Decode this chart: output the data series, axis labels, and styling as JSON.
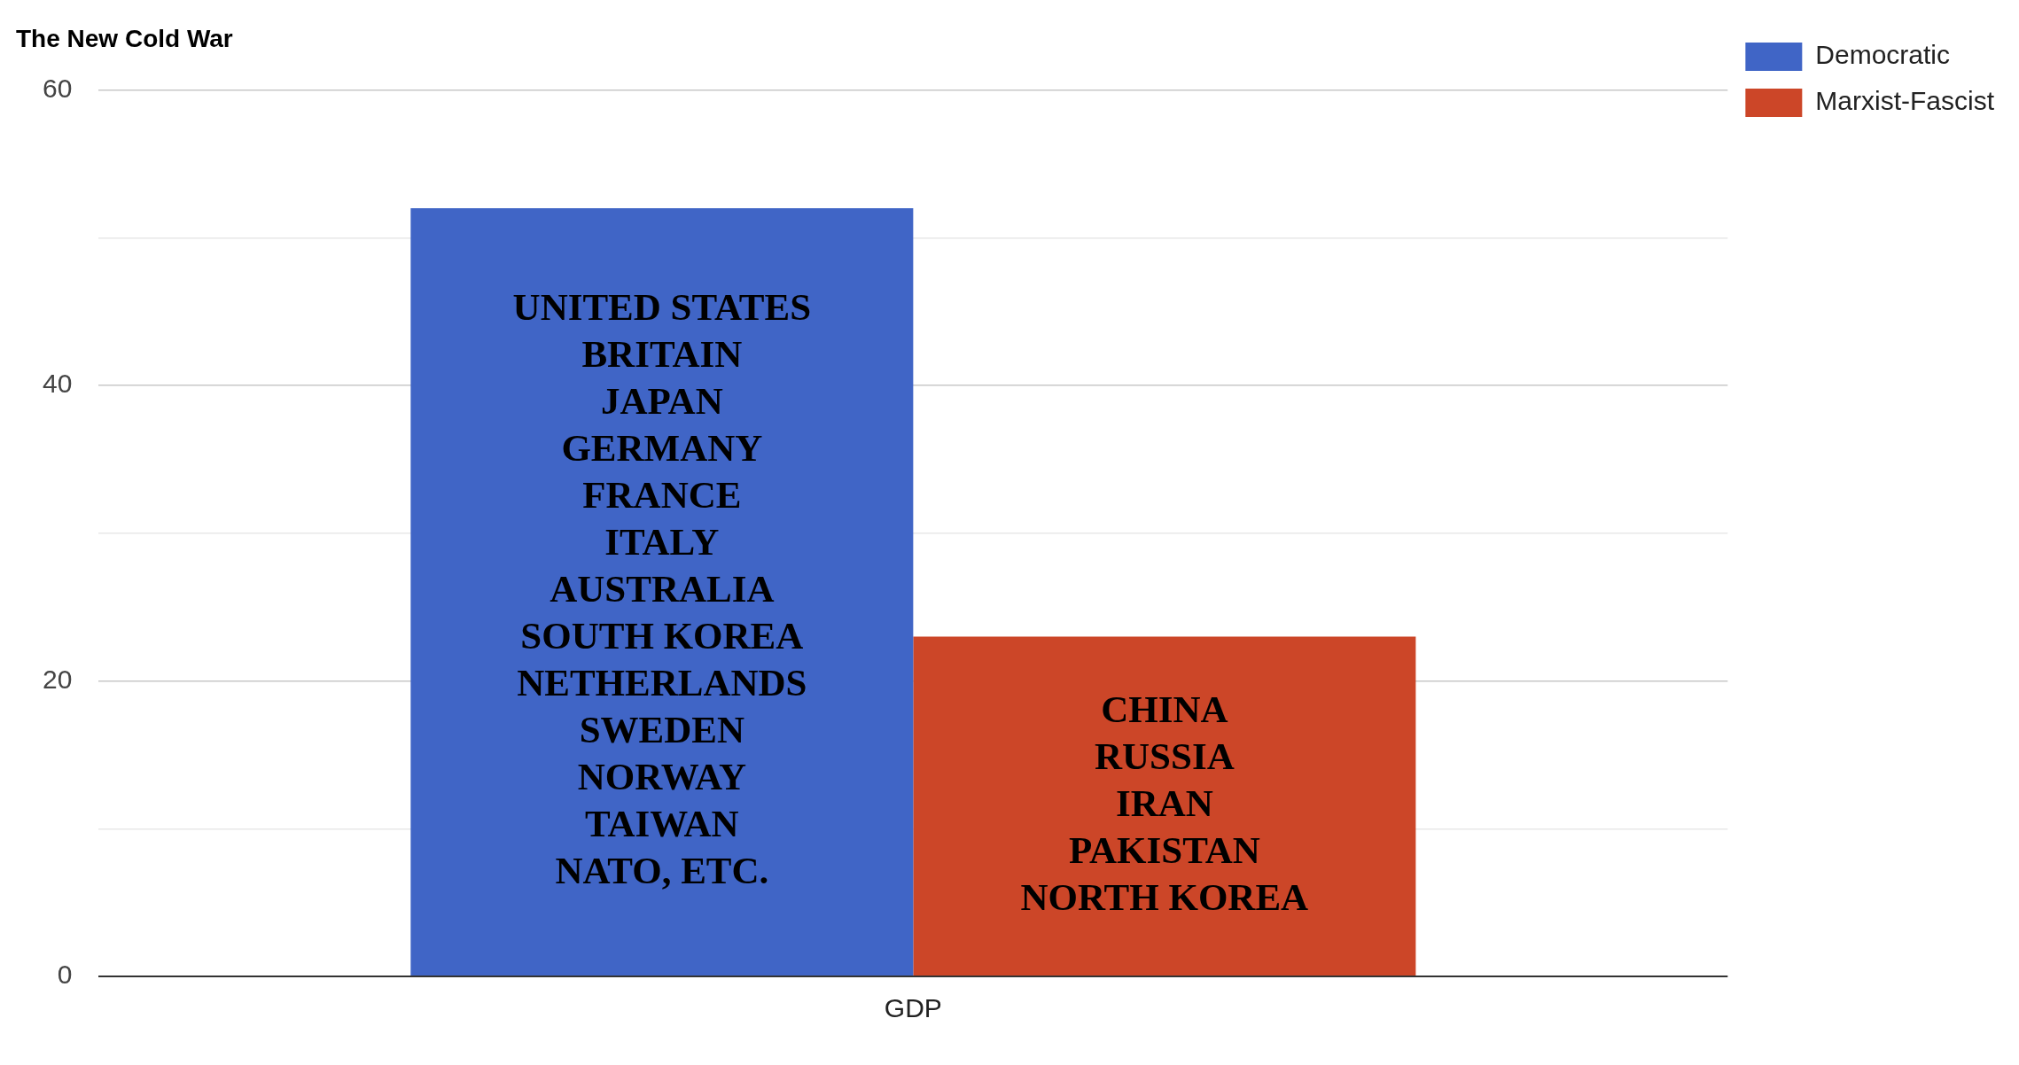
{
  "chart_data": {
    "type": "bar",
    "title": "The New Cold War",
    "categories": [
      "GDP"
    ],
    "series": [
      {
        "name": "Democratic",
        "color": "#4065c6",
        "values": [
          52
        ]
      },
      {
        "name": "Marxist-Fascist",
        "color": "#cc4628",
        "values": [
          23
        ]
      }
    ],
    "ylim": [
      0,
      60
    ],
    "yticks": [
      0,
      {
        "value": 10,
        "label": null
      },
      20,
      {
        "value": 30,
        "label": null
      },
      40,
      {
        "value": 50,
        "label": null
      },
      60
    ],
    "grid": "y",
    "legend": "top right",
    "annotations": [
      "UNITED STATES\nBRITAIN\nJAPAN\nGERMANY\nFRANCE\nITALY\nAUSTRALIA\nSOUTH KOREA\nNETHERLANDS\nSWEDEN\nNORWAY\nTAIWAN\nNATO, ETC.",
      "CHINA\nRUSSIA\nIRAN\nPAKISTAN\nNORTH KOREA"
    ]
  }
}
